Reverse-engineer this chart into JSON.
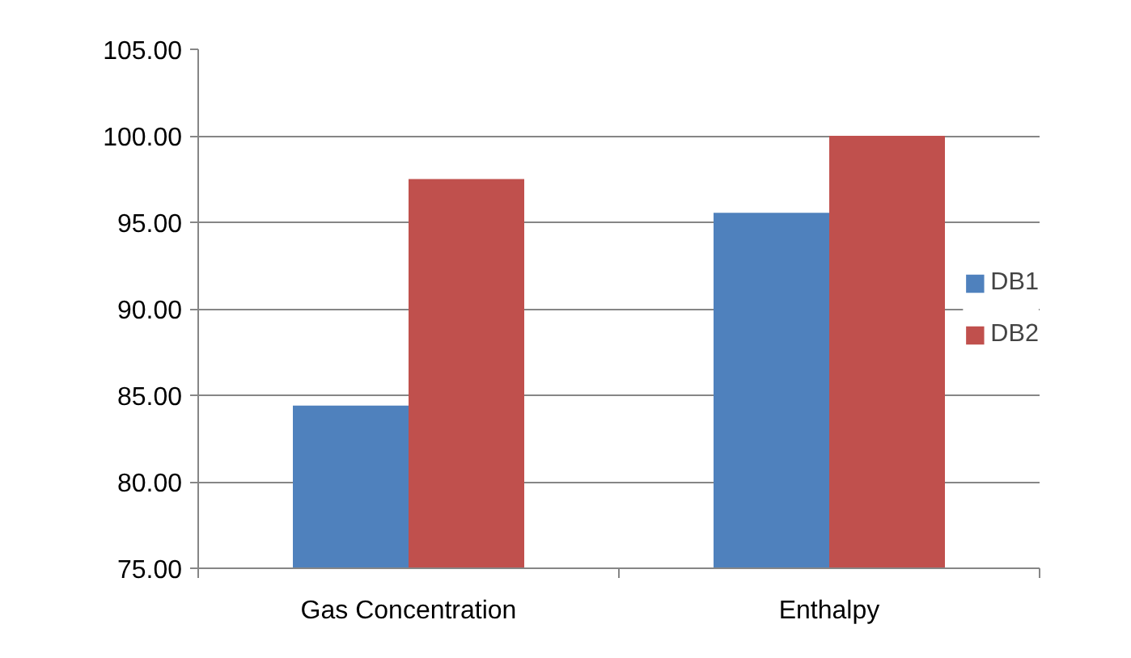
{
  "chart_data": {
    "type": "bar",
    "categories": [
      "Gas Concentration",
      "Enthalpy"
    ],
    "series": [
      {
        "name": "DB1",
        "color": "#4f81bd",
        "values": [
          84.4,
          95.55
        ]
      },
      {
        "name": "DB2",
        "color": "#c0504d",
        "values": [
          97.5,
          100.0
        ]
      }
    ],
    "ylim": [
      75,
      105
    ],
    "yticks": [
      {
        "value": 75,
        "label": "75.00"
      },
      {
        "value": 80,
        "label": "80.00"
      },
      {
        "value": 85,
        "label": "85.00"
      },
      {
        "value": 90,
        "label": "90.00"
      },
      {
        "value": 95,
        "label": "95.00"
      },
      {
        "value": 100,
        "label": "100.00"
      },
      {
        "value": 105,
        "label": "105.00"
      }
    ],
    "grid": "y",
    "legend": "right"
  }
}
